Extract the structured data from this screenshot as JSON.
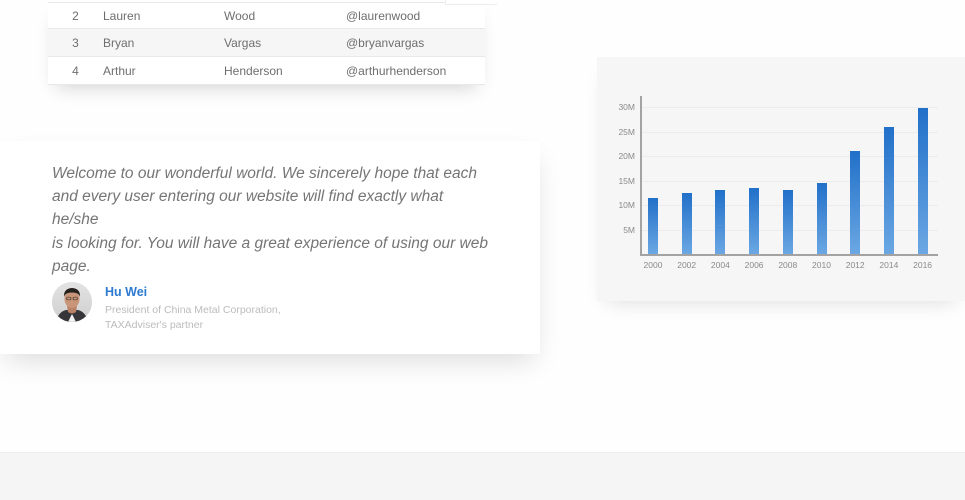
{
  "table": {
    "rows": [
      {
        "id": "2",
        "first_name": "Lauren",
        "last_name": "Wood",
        "username": "@laurenwood"
      },
      {
        "id": "3",
        "first_name": "Bryan",
        "last_name": "Vargas",
        "username": "@bryanvargas"
      },
      {
        "id": "4",
        "first_name": "Arthur",
        "last_name": "Henderson",
        "username": "@arthurhenderson"
      }
    ]
  },
  "testimonial": {
    "quote_lines": [
      "Welcome to our wonderful world. We sincerely hope that each",
      "and every user entering our website will find exactly what he/she",
      "is looking for. You will have a great experience of using our web",
      "page."
    ],
    "author": {
      "name": "Hu Wei",
      "title_line1": "President of China Metal Corporation,",
      "title_line2": "TAXAdviser's partner"
    },
    "name_color": "#2e7ad3"
  },
  "chart_data": {
    "type": "bar",
    "title": "",
    "xlabel": "",
    "ylabel": "",
    "categories": [
      "2000",
      "2002",
      "2004",
      "2006",
      "2008",
      "2010",
      "2012",
      "2014",
      "2016"
    ],
    "values": [
      11.5,
      12.5,
      13,
      13.5,
      13,
      14.5,
      21,
      26,
      29.8
    ],
    "unit": "M",
    "y_ticks": [
      {
        "value": 30,
        "label": "30M"
      },
      {
        "value": 25,
        "label": "25M"
      },
      {
        "value": 20,
        "label": "20M"
      },
      {
        "value": 15,
        "label": "15M"
      },
      {
        "value": 10,
        "label": "10M"
      },
      {
        "value": 5,
        "label": "5M"
      }
    ],
    "ylim": [
      0,
      32
    ],
    "grid": true,
    "legend": false,
    "bar_color_top": "#2170c9",
    "bar_color_bottom": "#6ba7e3"
  }
}
